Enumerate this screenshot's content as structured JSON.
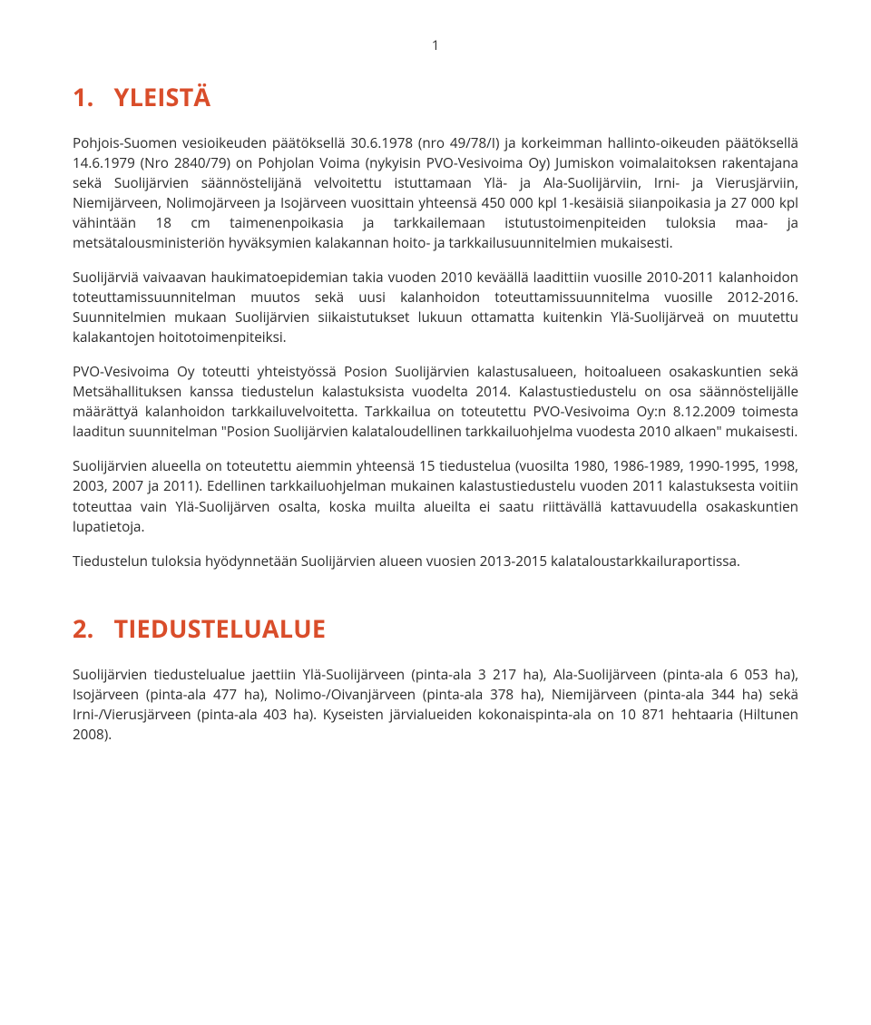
{
  "page_number": "1",
  "colors": {
    "heading": "#d94d2a",
    "body_text": "#2b2b2b",
    "background": "#ffffff"
  },
  "typography": {
    "heading_size_pt": 20,
    "heading_weight": 700,
    "body_size_pt": 11.5,
    "body_line_height": 1.45,
    "font_family": "Segoe UI / Open Sans / sans-serif"
  },
  "section1": {
    "number": "1.",
    "title": "YLEISTÄ",
    "paragraphs": [
      "Pohjois-Suomen vesioikeuden päätöksellä 30.6.1978 (nro 49/78/I) ja korkeimman hallinto-oikeuden päätöksellä 14.6.1979 (Nro 2840/79) on Pohjolan Voima (nykyisin PVO-Vesivoima Oy) Jumiskon voimalaitoksen rakentajana sekä Suolijärvien säännöstelijänä velvoitettu istuttamaan Ylä- ja Ala-Suolijärviin, Irni- ja Vierusjärviin, Niemijärveen, Nolimojärveen ja Isojärveen vuosittain yhteensä 450 000 kpl 1-kesäisiä siianpoikasia ja 27 000 kpl vähintään 18 cm taimenenpoikasia ja tarkkailemaan istutustoimenpiteiden tuloksia maa- ja metsätalousministeriön hyväksymien kalakannan hoito- ja tarkkailusuunnitelmien mukaisesti.",
      "Suolijärviä vaivaavan haukimatoepidemian takia vuoden 2010 keväällä laadittiin vuosille 2010-2011 kalanhoidon toteuttamissuunnitelman muutos sekä uusi kalanhoidon toteuttamissuunnitelma vuosille 2012-2016. Suunnitelmien mukaan Suolijärvien siikaistutukset lukuun ottamatta kuitenkin Ylä-Suolijärveä on muutettu kalakantojen hoitotoimenpiteiksi.",
      "PVO-Vesivoima Oy toteutti yhteistyössä Posion Suolijärvien kalastusalueen, hoitoalueen osakaskuntien sekä Metsähallituksen kanssa tiedustelun kalastuksista vuodelta 2014. Kalastustiedustelu on osa säännöstelijälle määrättyä kalanhoidon tarkkailuvelvoitetta. Tarkkailua on toteutettu PVO-Vesivoima Oy:n 8.12.2009 toimesta laaditun suunnitelman \"Posion Suolijärvien kalataloudellinen tarkkailuohjelma vuodesta 2010 alkaen\" mukaisesti.",
      "Suolijärvien alueella on toteutettu aiemmin yhteensä 15 tiedustelua (vuosilta 1980, 1986-1989, 1990-1995, 1998, 2003, 2007 ja 2011). Edellinen tarkkailuohjelman mukainen kalastustiedustelu vuoden 2011 kalastuksesta voitiin toteuttaa vain Ylä-Suolijärven osalta, koska muilta alueilta ei saatu riittävällä kattavuudella osakaskuntien lupatietoja.",
      "Tiedustelun tuloksia hyödynnetään Suolijärvien alueen vuosien 2013-2015 kalataloustarkkailuraportissa."
    ]
  },
  "section2": {
    "number": "2.",
    "title": "TIEDUSTELUALUE",
    "paragraphs": [
      "Suolijärvien tiedustelualue jaettiin Ylä-Suolijärveen (pinta-ala 3 217 ha), Ala-Suolijärveen (pinta-ala 6 053 ha), Isojärveen (pinta-ala 477 ha), Nolimo-/Oivanjärveen (pinta-ala 378 ha), Niemijärveen (pinta-ala 344 ha) sekä Irni-/Vierusjärveen (pinta-ala 403 ha). Kyseisten järvialueiden kokonaispinta-ala on 10 871 hehtaaria (Hiltunen 2008)."
    ]
  }
}
